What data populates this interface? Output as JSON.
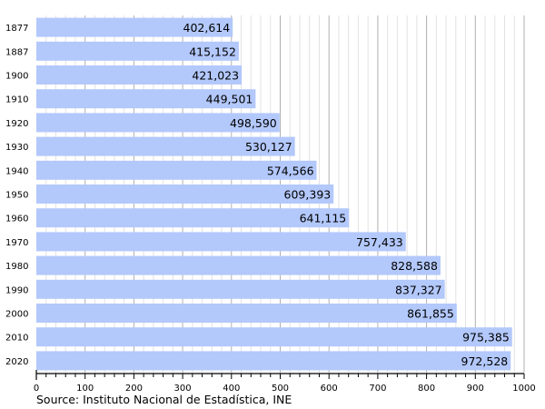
{
  "chart_data": {
    "type": "bar",
    "orientation": "horizontal",
    "categories": [
      "1877",
      "1887",
      "1900",
      "1910",
      "1920",
      "1930",
      "1940",
      "1950",
      "1960",
      "1970",
      "1980",
      "1990",
      "2000",
      "2010",
      "2020"
    ],
    "values": [
      402614,
      415152,
      421023,
      449501,
      498590,
      530127,
      574566,
      609393,
      641115,
      757433,
      828588,
      837327,
      861855,
      975385,
      972528
    ],
    "value_labels": [
      "402,614",
      "415,152",
      "421,023",
      "449,501",
      "498,590",
      "530,127",
      "574,566",
      "609,393",
      "641,115",
      "757,433",
      "828,588",
      "837,327",
      "861,855",
      "975,385",
      "972,528"
    ],
    "x_axis_unit_divisor": 1000,
    "xlim": [
      0,
      1000
    ],
    "x_ticks": [
      "0",
      "100",
      "200",
      "300",
      "400",
      "500",
      "600",
      "700",
      "800",
      "900",
      "1000"
    ],
    "grid": true,
    "source": "Source: Instituto Nacional de Estadística, INE",
    "colors": {
      "bar": "#b3c8fb",
      "major_grid": "#b0b0b0",
      "minor_grid": "#e2e2e2"
    }
  }
}
